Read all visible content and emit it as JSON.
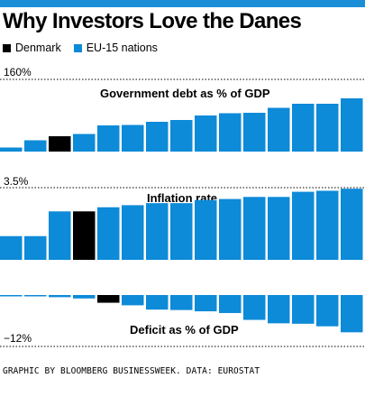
{
  "header": {
    "title": "Why Investors Love the Danes",
    "bar_color": "#1a8fd8"
  },
  "legend": [
    {
      "label": "Denmark",
      "color": "#000000"
    },
    {
      "label": "EU-15 nations",
      "color": "#0d8ad8"
    }
  ],
  "source": "GRAPHIC BY BLOOMBERG BUSINESSWEEK. DATA: EUROSTAT",
  "chart_data": [
    {
      "type": "bar",
      "title": "Government debt as % of GDP",
      "ylim": [
        0,
        160
      ],
      "ticks": [
        "160%"
      ],
      "highlight_index": 2,
      "values": [
        9,
        25,
        34,
        39,
        58,
        59,
        66,
        70,
        80,
        85,
        86,
        97,
        106,
        106,
        118,
        159
      ]
    },
    {
      "type": "bar",
      "title": "Inflation rate",
      "ylim": [
        0,
        3.5
      ],
      "ticks": [
        "3.5%"
      ],
      "highlight_index": 3,
      "values": [
        1.15,
        1.15,
        2.35,
        2.35,
        2.55,
        2.65,
        2.75,
        2.75,
        2.9,
        2.95,
        3.05,
        3.05,
        3.3,
        3.35,
        3.45,
        3.5
      ]
    },
    {
      "type": "bar",
      "title": "Deficit as % of GDP",
      "ylim": [
        -12,
        0
      ],
      "ticks": [
        "−12%"
      ],
      "highlight_index": 4,
      "values": [
        -0.2,
        -0.3,
        -0.5,
        -0.8,
        -1.8,
        -2.4,
        -3.4,
        -3.5,
        -3.8,
        -4.2,
        -5.8,
        -6.6,
        -6.7,
        -7.3,
        -8.7,
        -12.3
      ]
    }
  ]
}
